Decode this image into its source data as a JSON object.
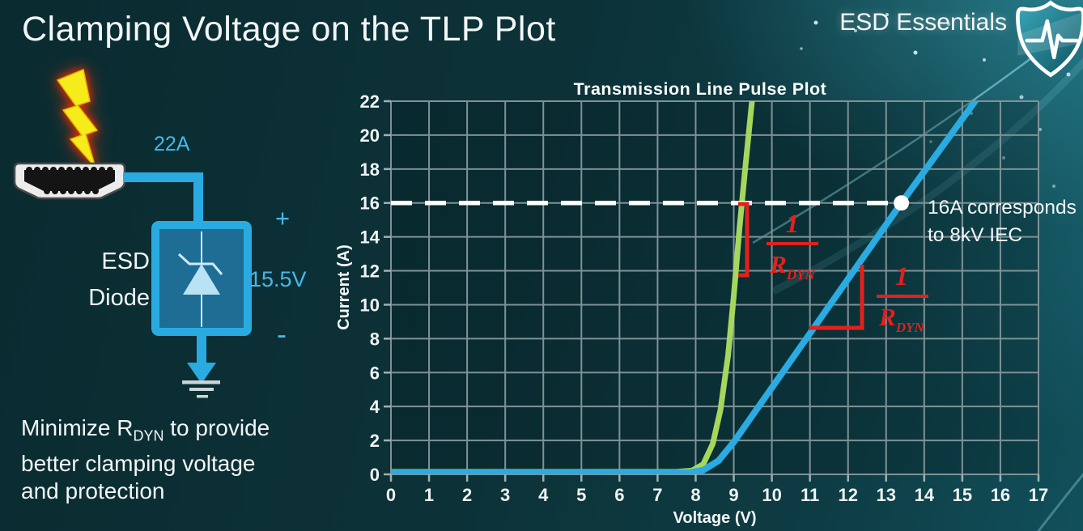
{
  "slide": {
    "title": "Clamping Voltage on the TLP Plot",
    "brand": "ESD Essentials",
    "note": {
      "line1_prefix": "Minimize R",
      "line1_sub": "DYN",
      "line1_suffix": " to provide",
      "line2": "better clamping voltage",
      "line3": "and protection"
    }
  },
  "diagram": {
    "surge_current": "22A",
    "device_line1": "ESD",
    "device_line2": "Diode",
    "plus": "+",
    "clamp_voltage": "15.5V",
    "minus": "-"
  },
  "colors": {
    "accent_cyan": "#29abe2",
    "curve_green": "#a5d75e",
    "curve_blue": "#2aabe2",
    "annotation_red": "#e3201b",
    "dashed_reference": "#ffffff",
    "grid": "#7e9296"
  },
  "chart_data": {
    "type": "line",
    "title": "Transmission Line Pulse Plot",
    "xlabel": "Voltage (V)",
    "ylabel": "Current (A)",
    "xlim": [
      0,
      17
    ],
    "ylim": [
      0,
      22
    ],
    "xticks": [
      0,
      1,
      2,
      3,
      4,
      5,
      6,
      7,
      8,
      9,
      10,
      11,
      12,
      13,
      14,
      15,
      16,
      17
    ],
    "yticks": [
      0,
      2,
      4,
      6,
      8,
      10,
      12,
      14,
      16,
      18,
      20,
      22
    ],
    "grid": true,
    "legend": "none",
    "series": [
      {
        "name": "green",
        "color": "#a5d75e",
        "points": [
          [
            0,
            0.15
          ],
          [
            7.5,
            0.15
          ],
          [
            7.9,
            0.22
          ],
          [
            8.2,
            0.6
          ],
          [
            8.45,
            1.8
          ],
          [
            8.65,
            3.8
          ],
          [
            8.85,
            7.0
          ],
          [
            9.0,
            10.5
          ],
          [
            9.15,
            14.5
          ],
          [
            9.3,
            18.0
          ],
          [
            9.5,
            22.5
          ]
        ]
      },
      {
        "name": "blue",
        "color": "#2aabe2",
        "points": [
          [
            0,
            0.1
          ],
          [
            7.8,
            0.1
          ],
          [
            8.2,
            0.25
          ],
          [
            8.6,
            0.8
          ],
          [
            9.0,
            1.9
          ],
          [
            13.4,
            16.0
          ],
          [
            15.5,
            22.5
          ]
        ]
      }
    ],
    "reference_line": {
      "y": 16,
      "x_start": 0,
      "x_end": 13.4,
      "color": "#ffffff",
      "style": "dashed"
    },
    "marker": {
      "x": 13.4,
      "y": 16,
      "color": "#ffffff",
      "label_line1": "16A corresponds",
      "label_line2": "to 8kV IEC"
    },
    "slope_annotations": [
      {
        "target": "green",
        "numerator": "1",
        "denominator_base": "R",
        "denominator_sub": "DYN",
        "color": "#e3201b"
      },
      {
        "target": "blue",
        "numerator": "1",
        "denominator_base": "R",
        "denominator_sub": "DYN",
        "color": "#e3201b"
      }
    ]
  }
}
